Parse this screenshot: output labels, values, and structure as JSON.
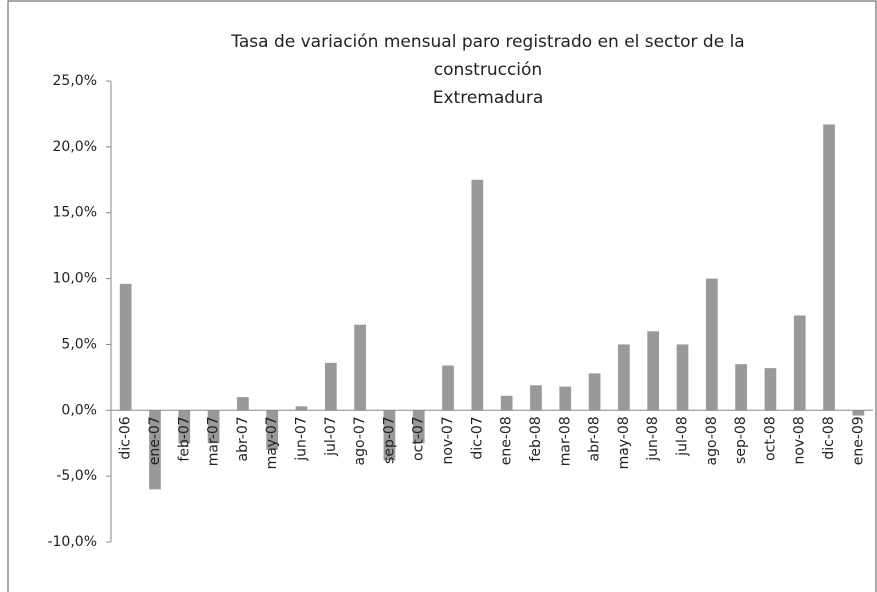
{
  "chart_data": {
    "type": "bar",
    "title": [
      "Tasa de variación mensual paro registrado en el sector de la",
      "construcción",
      "Extremadura"
    ],
    "categories": [
      "dic-06",
      "ene-07",
      "feb-07",
      "mar-07",
      "abr-07",
      "may-07",
      "jun-07",
      "jul-07",
      "ago-07",
      "sep-07",
      "oct-07",
      "nov-07",
      "dic-07",
      "ene-08",
      "feb-08",
      "mar-08",
      "abr-08",
      "may-08",
      "jun-08",
      "jul-08",
      "ago-08",
      "sep-08",
      "oct-08",
      "nov-08",
      "dic-08",
      "ene-09"
    ],
    "values": [
      9.6,
      -6.0,
      -2.5,
      -2.5,
      1.0,
      -3.0,
      0.3,
      3.6,
      6.5,
      -3.8,
      -2.5,
      3.4,
      17.5,
      1.1,
      1.9,
      1.8,
      2.8,
      5.0,
      6.0,
      5.0,
      10.0,
      3.5,
      3.2,
      7.2,
      21.7,
      -0.4
    ],
    "color": "#999999",
    "ylim": [
      -10,
      25
    ],
    "yticks": [
      {
        "value": -10,
        "label": "-10,0%"
      },
      {
        "value": -5,
        "label": "-5,0%"
      },
      {
        "value": 0,
        "label": "0,0%"
      },
      {
        "value": 5,
        "label": "5,0%"
      },
      {
        "value": 10,
        "label": "10,0%"
      },
      {
        "value": 15,
        "label": "15,0%"
      },
      {
        "value": 20,
        "label": "20,0%"
      },
      {
        "value": 25,
        "label": "25,0%"
      }
    ],
    "grid": false
  }
}
